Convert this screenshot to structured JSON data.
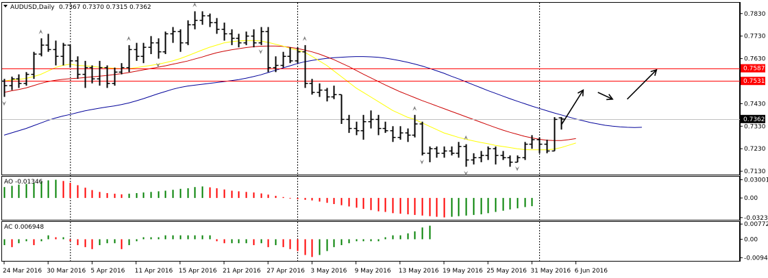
{
  "header": {
    "symbol_label": "AUDUSD,Daily",
    "ohlc_label": "0.7367 0.7370 0.7315 0.7362",
    "ao_label": "AO -0.01346",
    "ac_label": "AC 0.006948"
  },
  "colors": {
    "background": "#ffffff",
    "bar": "#000000",
    "ma_yellow": "#ffff00",
    "ma_red": "#cc0000",
    "ma_blue": "#000099",
    "hline": "#ff0000",
    "osc_up": "#008000",
    "osc_down": "#ff0000",
    "fractal": "#808080"
  },
  "chart_data": [
    {
      "type": "ohlc",
      "panel": "price",
      "symbol": "AUDUSD",
      "timeframe": "Daily",
      "ylim": [
        0.7115,
        0.7875
      ],
      "yticks": [
        "0.7830",
        "0.7730",
        "0.7630",
        "0.7430",
        "0.7330",
        "0.7230",
        "0.7130"
      ],
      "xticks": [
        "24 Mar 2016",
        "30 Mar 2016",
        "5 Apr 2016",
        "11 Apr 2016",
        "15 Apr 2016",
        "21 Apr 2016",
        "27 Apr 2016",
        "3 May 2016",
        "9 May 2016",
        "13 May 2016",
        "19 May 2016",
        "25 May 2016",
        "31 May 2016",
        "6 Jun 2016"
      ],
      "ohlc": [
        [
          0.753,
          0.754,
          0.746,
          0.751
        ],
        [
          0.751,
          0.755,
          0.749,
          0.754
        ],
        [
          0.754,
          0.756,
          0.75,
          0.752
        ],
        [
          0.752,
          0.757,
          0.751,
          0.756
        ],
        [
          0.756,
          0.766,
          0.754,
          0.765
        ],
        [
          0.765,
          0.772,
          0.764,
          0.769
        ],
        [
          0.769,
          0.774,
          0.766,
          0.767
        ],
        [
          0.767,
          0.771,
          0.76,
          0.764
        ],
        [
          0.764,
          0.77,
          0.76,
          0.769
        ],
        [
          0.769,
          0.769,
          0.759,
          0.762
        ],
        [
          0.762,
          0.764,
          0.754,
          0.756
        ],
        [
          0.756,
          0.762,
          0.75,
          0.759
        ],
        [
          0.759,
          0.76,
          0.752,
          0.754
        ],
        [
          0.754,
          0.762,
          0.751,
          0.759
        ],
        [
          0.759,
          0.76,
          0.75,
          0.752
        ],
        [
          0.752,
          0.759,
          0.751,
          0.757
        ],
        [
          0.757,
          0.761,
          0.756,
          0.759
        ],
        [
          0.759,
          0.769,
          0.757,
          0.767
        ],
        [
          0.767,
          0.77,
          0.762,
          0.764
        ],
        [
          0.764,
          0.77,
          0.761,
          0.768
        ],
        [
          0.768,
          0.773,
          0.765,
          0.77
        ],
        [
          0.77,
          0.772,
          0.763,
          0.766
        ],
        [
          0.766,
          0.775,
          0.765,
          0.774
        ],
        [
          0.774,
          0.777,
          0.77,
          0.775
        ],
        [
          0.775,
          0.776,
          0.766,
          0.77
        ],
        [
          0.77,
          0.78,
          0.769,
          0.778
        ],
        [
          0.778,
          0.784,
          0.776,
          0.78
        ],
        [
          0.78,
          0.784,
          0.778,
          0.782
        ],
        [
          0.782,
          0.783,
          0.777,
          0.779
        ],
        [
          0.779,
          0.781,
          0.774,
          0.776
        ],
        [
          0.776,
          0.779,
          0.771,
          0.774
        ],
        [
          0.774,
          0.776,
          0.769,
          0.772
        ],
        [
          0.772,
          0.774,
          0.768,
          0.77
        ],
        [
          0.77,
          0.775,
          0.769,
          0.773
        ],
        [
          0.773,
          0.776,
          0.768,
          0.77
        ],
        [
          0.77,
          0.777,
          0.769,
          0.775
        ],
        [
          0.775,
          0.777,
          0.757,
          0.759
        ],
        [
          0.759,
          0.764,
          0.757,
          0.76
        ],
        [
          0.76,
          0.766,
          0.759,
          0.764
        ],
        [
          0.764,
          0.768,
          0.761,
          0.762
        ],
        [
          0.762,
          0.768,
          0.761,
          0.766
        ],
        [
          0.766,
          0.769,
          0.75,
          0.752
        ],
        [
          0.752,
          0.754,
          0.747,
          0.748
        ],
        [
          0.748,
          0.752,
          0.746,
          0.749
        ],
        [
          0.749,
          0.75,
          0.744,
          0.746
        ],
        [
          0.746,
          0.751,
          0.745,
          0.747
        ],
        [
          0.747,
          0.747,
          0.734,
          0.736
        ],
        [
          0.736,
          0.738,
          0.73,
          0.732
        ],
        [
          0.732,
          0.735,
          0.729,
          0.731
        ],
        [
          0.731,
          0.738,
          0.727,
          0.735
        ],
        [
          0.735,
          0.74,
          0.732,
          0.736
        ],
        [
          0.736,
          0.738,
          0.729,
          0.732
        ],
        [
          0.732,
          0.735,
          0.73,
          0.731
        ],
        [
          0.731,
          0.733,
          0.726,
          0.728
        ],
        [
          0.728,
          0.733,
          0.727,
          0.73
        ],
        [
          0.73,
          0.732,
          0.726,
          0.729
        ],
        [
          0.729,
          0.738,
          0.728,
          0.734
        ],
        [
          0.734,
          0.735,
          0.72,
          0.721
        ],
        [
          0.721,
          0.724,
          0.717,
          0.723
        ],
        [
          0.723,
          0.724,
          0.719,
          0.721
        ],
        [
          0.721,
          0.724,
          0.719,
          0.722
        ],
        [
          0.722,
          0.724,
          0.72,
          0.721
        ],
        [
          0.721,
          0.726,
          0.719,
          0.724
        ],
        [
          0.724,
          0.725,
          0.715,
          0.718
        ],
        [
          0.718,
          0.721,
          0.716,
          0.719
        ],
        [
          0.719,
          0.722,
          0.717,
          0.72
        ],
        [
          0.72,
          0.724,
          0.718,
          0.723
        ],
        [
          0.723,
          0.724,
          0.716,
          0.72
        ],
        [
          0.72,
          0.722,
          0.718,
          0.719
        ],
        [
          0.719,
          0.72,
          0.715,
          0.717
        ],
        [
          0.717,
          0.72,
          0.717,
          0.719
        ],
        [
          0.719,
          0.726,
          0.718,
          0.725
        ],
        [
          0.725,
          0.729,
          0.723,
          0.727
        ],
        [
          0.727,
          0.728,
          0.721,
          0.725
        ],
        [
          0.725,
          0.727,
          0.721,
          0.722
        ],
        [
          0.722,
          0.737,
          0.722,
          0.736
        ],
        [
          0.7367,
          0.737,
          0.7315,
          0.7362
        ]
      ],
      "ma_yellow": [
        0.753,
        0.7535,
        0.7538,
        0.7542,
        0.755,
        0.756,
        0.7575,
        0.759,
        0.76,
        0.7605,
        0.76,
        0.7598,
        0.7595,
        0.7592,
        0.759,
        0.7587,
        0.7585,
        0.7585,
        0.759,
        0.7595,
        0.76,
        0.7605,
        0.7612,
        0.762,
        0.763,
        0.7642,
        0.7655,
        0.7668,
        0.768,
        0.769,
        0.77,
        0.7705,
        0.7708,
        0.771,
        0.771,
        0.7708,
        0.7702,
        0.7694,
        0.7686,
        0.7676,
        0.7668,
        0.7658,
        0.764,
        0.762,
        0.76,
        0.7575,
        0.755,
        0.7525,
        0.75,
        0.748,
        0.746,
        0.744,
        0.742,
        0.74,
        0.7385,
        0.737,
        0.736,
        0.7345,
        0.733,
        0.7315,
        0.73,
        0.729,
        0.728,
        0.7272,
        0.7265,
        0.7258,
        0.7252,
        0.7245,
        0.724,
        0.7235,
        0.723,
        0.7226,
        0.7225,
        0.7225,
        0.7225,
        0.7228,
        0.7235,
        0.7245,
        0.7255
      ],
      "ma_red": [
        0.748,
        0.7487,
        0.7493,
        0.75,
        0.751,
        0.752,
        0.7528,
        0.7534,
        0.7538,
        0.7541,
        0.7543,
        0.7546,
        0.7549,
        0.7552,
        0.7555,
        0.7559,
        0.7563,
        0.7568,
        0.7574,
        0.758,
        0.7586,
        0.7592,
        0.7598,
        0.7605,
        0.7612,
        0.7619,
        0.7628,
        0.7637,
        0.7647,
        0.7656,
        0.7663,
        0.7669,
        0.7674,
        0.7679,
        0.7683,
        0.7685,
        0.7686,
        0.7686,
        0.7684,
        0.768,
        0.7675,
        0.7668,
        0.766,
        0.765,
        0.7638,
        0.7625,
        0.761,
        0.7595,
        0.7578,
        0.7561,
        0.7545,
        0.7529,
        0.7513,
        0.7498,
        0.7483,
        0.747,
        0.7457,
        0.7444,
        0.7432,
        0.742,
        0.7408,
        0.7396,
        0.7384,
        0.7372,
        0.736,
        0.7348,
        0.7336,
        0.7324,
        0.7313,
        0.7303,
        0.7294,
        0.7285,
        0.7278,
        0.7272,
        0.7268,
        0.7266,
        0.7266,
        0.727,
        0.7275
      ],
      "ma_blue": [
        0.729,
        0.73,
        0.731,
        0.732,
        0.7332,
        0.7344,
        0.7356,
        0.7366,
        0.7375,
        0.7382,
        0.739,
        0.7398,
        0.7404,
        0.741,
        0.7415,
        0.742,
        0.7426,
        0.7433,
        0.7442,
        0.7452,
        0.7463,
        0.7474,
        0.7484,
        0.7494,
        0.7502,
        0.7508,
        0.7512,
        0.7516,
        0.752,
        0.7524,
        0.7528,
        0.7532,
        0.7537,
        0.7543,
        0.755,
        0.7558,
        0.7568,
        0.7578,
        0.7588,
        0.7598,
        0.7608,
        0.7616,
        0.7622,
        0.7627,
        0.7631,
        0.7634,
        0.7636,
        0.7638,
        0.7639,
        0.7639,
        0.7638,
        0.7636,
        0.7632,
        0.7627,
        0.7621,
        0.7614,
        0.7606,
        0.7597,
        0.7587,
        0.7576,
        0.7565,
        0.7552,
        0.754,
        0.7527,
        0.7514,
        0.7501,
        0.7488,
        0.7476,
        0.7464,
        0.7452,
        0.7441,
        0.743,
        0.7419,
        0.7409,
        0.7399,
        0.7389,
        0.738,
        0.7371,
        0.7362,
        0.7354,
        0.7346,
        0.734,
        0.7334,
        0.733,
        0.7327,
        0.7325,
        0.7324,
        0.7325
      ],
      "hlines": [
        {
          "value": 0.7587,
          "label": "0.7587"
        },
        {
          "value": 0.7531,
          "label": "0.7531"
        }
      ],
      "current_price": {
        "value": 0.7362,
        "label": "0.7362"
      },
      "fractals_up": [
        5,
        17,
        26,
        41,
        56,
        63
      ],
      "fractals_down": [
        0,
        21,
        35,
        57,
        63,
        70
      ],
      "annotations": "hand-drawn forecast arrows: up, down, up",
      "forecast_arrows": [
        [
          [
            0.7335,
            76
          ],
          [
            0.749,
            79
          ]
        ],
        [
          [
            0.748,
            81
          ],
          [
            0.745,
            83
          ]
        ],
        [
          [
            0.745,
            85
          ],
          [
            0.758,
            89
          ]
        ]
      ]
    },
    {
      "type": "bar",
      "panel": "AO",
      "title": "AO -0.01346",
      "ylim": [
        -0.036,
        0.034
      ],
      "yticks": [
        "0.03001",
        "0.00",
        "-0.03236"
      ],
      "values": [
        0.018,
        0.02,
        0.022,
        0.023,
        0.025,
        0.027,
        0.029,
        0.03,
        0.028,
        0.025,
        0.021,
        0.017,
        0.013,
        0.01,
        0.008,
        0.007,
        0.006,
        0.007,
        0.008,
        0.009,
        0.01,
        0.011,
        0.012,
        0.0135,
        0.015,
        0.016,
        0.018,
        0.019,
        0.0175,
        0.016,
        0.014,
        0.012,
        0.011,
        0.01,
        0.009,
        0.0075,
        0.0055,
        0.0035,
        0.0015,
        -0.001,
        -0.002,
        -0.003,
        -0.004,
        -0.006,
        -0.008,
        -0.01,
        -0.012,
        -0.014,
        -0.016,
        -0.018,
        -0.02,
        -0.022,
        -0.023,
        -0.025,
        -0.026,
        -0.027,
        -0.028,
        -0.029,
        -0.03,
        -0.031,
        -0.032,
        -0.031,
        -0.03,
        -0.029,
        -0.028,
        -0.027,
        -0.025,
        -0.023,
        -0.021,
        -0.019,
        -0.017,
        -0.015,
        -0.0135
      ]
    },
    {
      "type": "bar",
      "panel": "AC",
      "title": "AC 0.006948",
      "ylim": [
        -0.011,
        0.0085
      ],
      "yticks": [
        "0.007727",
        "0.00",
        "-0.00940"
      ],
      "values": [
        -0.003,
        -0.004,
        -0.002,
        -0.001,
        -0.003,
        -0.001,
        0.002,
        0.001,
        0.001,
        -0.001,
        -0.003,
        -0.004,
        -0.005,
        -0.003,
        -0.002,
        -0.002,
        -0.005,
        -0.003,
        -0.001,
        0.001,
        0.001,
        0.001,
        0.002,
        0.002,
        0.002,
        0.002,
        0.002,
        0.002,
        0.002,
        -0.001,
        -0.002,
        -0.002,
        -0.002,
        -0.002,
        -0.003,
        -0.002,
        -0.004,
        -0.003,
        -0.004,
        -0.005,
        -0.006,
        -0.008,
        -0.009,
        -0.008,
        -0.006,
        -0.004,
        -0.003,
        -0.002,
        -0.001,
        -0.001,
        -0.001,
        -0.001,
        0.001,
        0.002,
        0.002,
        0.003,
        0.004,
        0.006,
        0.0069
      ]
    }
  ]
}
